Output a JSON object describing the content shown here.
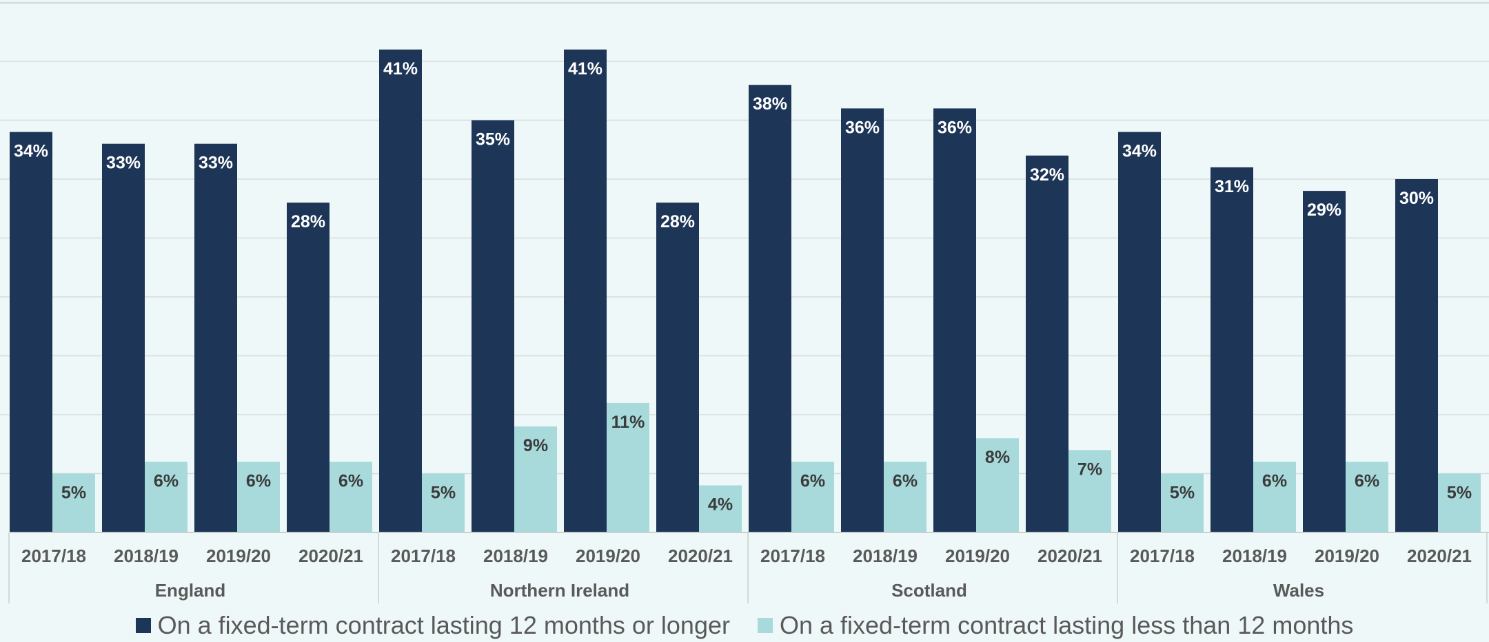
{
  "chart_data": {
    "type": "bar",
    "groups": [
      {
        "name": "England",
        "periods": [
          "2017/18",
          "2018/19",
          "2019/20",
          "2020/21"
        ]
      },
      {
        "name": "Northern Ireland",
        "periods": [
          "2017/18",
          "2018/19",
          "2019/20",
          "2020/21"
        ]
      },
      {
        "name": "Scotland",
        "periods": [
          "2017/18",
          "2018/19",
          "2019/20",
          "2020/21"
        ]
      },
      {
        "name": "Wales",
        "periods": [
          "2017/18",
          "2018/19",
          "2019/20",
          "2020/21"
        ]
      }
    ],
    "series": [
      {
        "name": "On a fixed-term contract lasting 12 months or longer",
        "color": "#1d3557",
        "values": [
          34,
          33,
          33,
          28,
          41,
          35,
          41,
          28,
          38,
          36,
          36,
          32,
          34,
          31,
          29,
          30
        ],
        "labels": [
          "34%",
          "33%",
          "33%",
          "28%",
          "41%",
          "35%",
          "41%",
          "28%",
          "38%",
          "36%",
          "36%",
          "32%",
          "34%",
          "31%",
          "29%",
          "30%"
        ]
      },
      {
        "name": "On a fixed-term contract lasting less than 12 months",
        "color": "#a8dadc",
        "values": [
          5,
          6,
          6,
          6,
          5,
          9,
          11,
          4,
          6,
          6,
          8,
          7,
          5,
          6,
          6,
          5
        ],
        "labels": [
          "5%",
          "6%",
          "6%",
          "6%",
          "5%",
          "9%",
          "11%",
          "4%",
          "6%",
          "6%",
          "8%",
          "7%",
          "5%",
          "6%",
          "6%",
          "5%"
        ]
      }
    ],
    "ylim": [
      0,
      45
    ],
    "y_gridline_step": 5,
    "grid": true,
    "legend_position": "bottom"
  }
}
